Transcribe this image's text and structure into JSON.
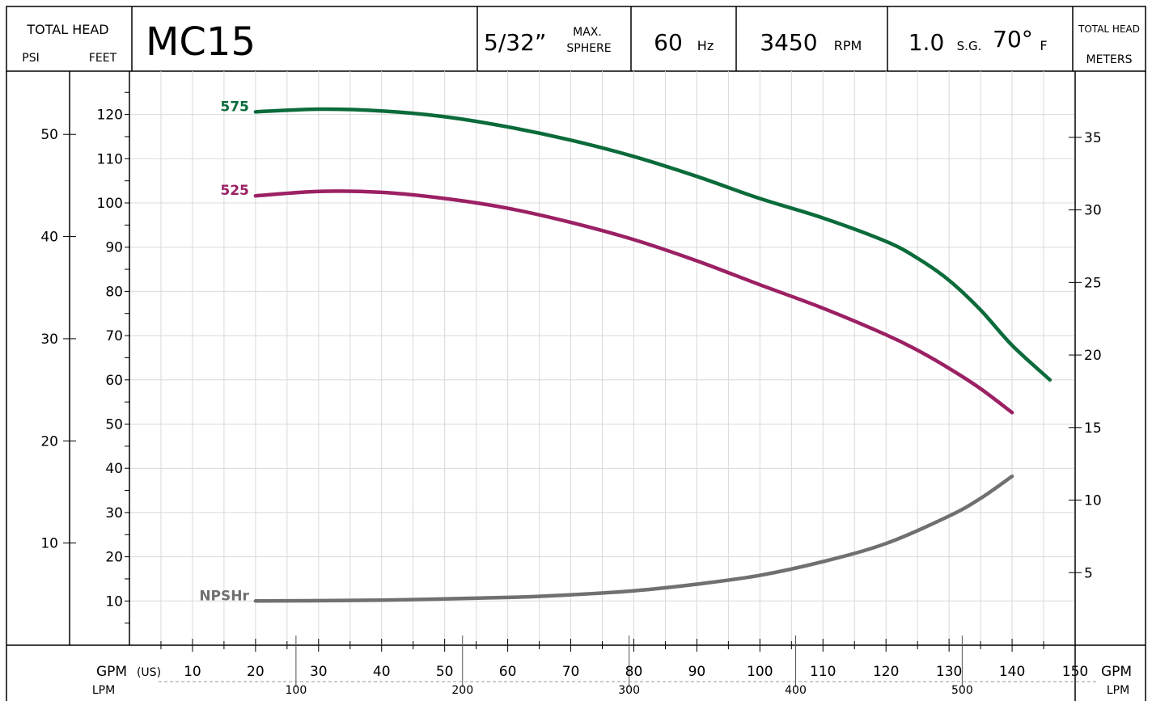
{
  "header": {
    "left_title": "TOTAL HEAD",
    "left_psi": "PSI",
    "left_feet": "FEET",
    "model": "MC15",
    "sphere_value": "5/32”",
    "sphere_max": "MAX.",
    "sphere_label": "SPHERE",
    "freq_value": "60",
    "freq_unit": "Hz",
    "speed_value": "3450",
    "speed_unit": "RPM",
    "sg_value": "1.0",
    "sg_label": "S.G.",
    "temp_value": "70°",
    "temp_unit": "F",
    "right_title": "TOTAL HEAD",
    "right_meters": "METERS"
  },
  "footer": {
    "gpm_label": "GPM",
    "gpm_unit": "(US)",
    "gpm_right": "GPM",
    "lpm_label": "LPM",
    "lpm_right": "LPM"
  },
  "chart_data": {
    "type": "line",
    "x_label": "GPM",
    "y_label": "FEET",
    "xlim": [
      0,
      150
    ],
    "ylim": [
      0,
      130
    ],
    "x_ticks": [
      10,
      20,
      30,
      40,
      50,
      60,
      70,
      80,
      90,
      100,
      110,
      120,
      130,
      140,
      150
    ],
    "feet_ticks": [
      10,
      20,
      30,
      40,
      50,
      60,
      70,
      80,
      90,
      100,
      110,
      120
    ],
    "psi_ticks": [
      10,
      20,
      30,
      40,
      50
    ],
    "meter_ticks": [
      5,
      10,
      15,
      20,
      25,
      30,
      35
    ],
    "lpm_ticks": [
      100,
      200,
      300,
      400,
      500
    ],
    "grid": true,
    "series": [
      {
        "name": "575",
        "color": "#0b6b3a",
        "x": [
          20,
          30,
          40,
          50,
          60,
          70,
          80,
          90,
          100,
          110,
          120,
          125,
          130,
          135,
          140,
          146
        ],
        "y": [
          120.6,
          121.2,
          120.8,
          119.5,
          117.2,
          114.2,
          110.5,
          106,
          101,
          96.6,
          91.3,
          87.5,
          82.5,
          75.8,
          67.8,
          60
        ]
      },
      {
        "name": "525",
        "color": "#9b2064",
        "x": [
          20,
          30,
          40,
          50,
          60,
          70,
          80,
          90,
          100,
          110,
          120,
          125,
          130,
          135,
          140
        ],
        "y": [
          101.6,
          102.6,
          102.4,
          101,
          98.8,
          95.6,
          91.7,
          86.9,
          81.5,
          76.2,
          70.2,
          66.7,
          62.6,
          58,
          52.6
        ]
      },
      {
        "name": "NPSHr",
        "color": "#707070",
        "x": [
          20,
          40,
          60,
          70,
          80,
          90,
          100,
          110,
          120,
          130,
          135,
          140
        ],
        "y": [
          10,
          10.2,
          10.8,
          11.4,
          12.3,
          13.8,
          15.8,
          18.9,
          23,
          29.2,
          33.2,
          38.2
        ]
      }
    ]
  }
}
